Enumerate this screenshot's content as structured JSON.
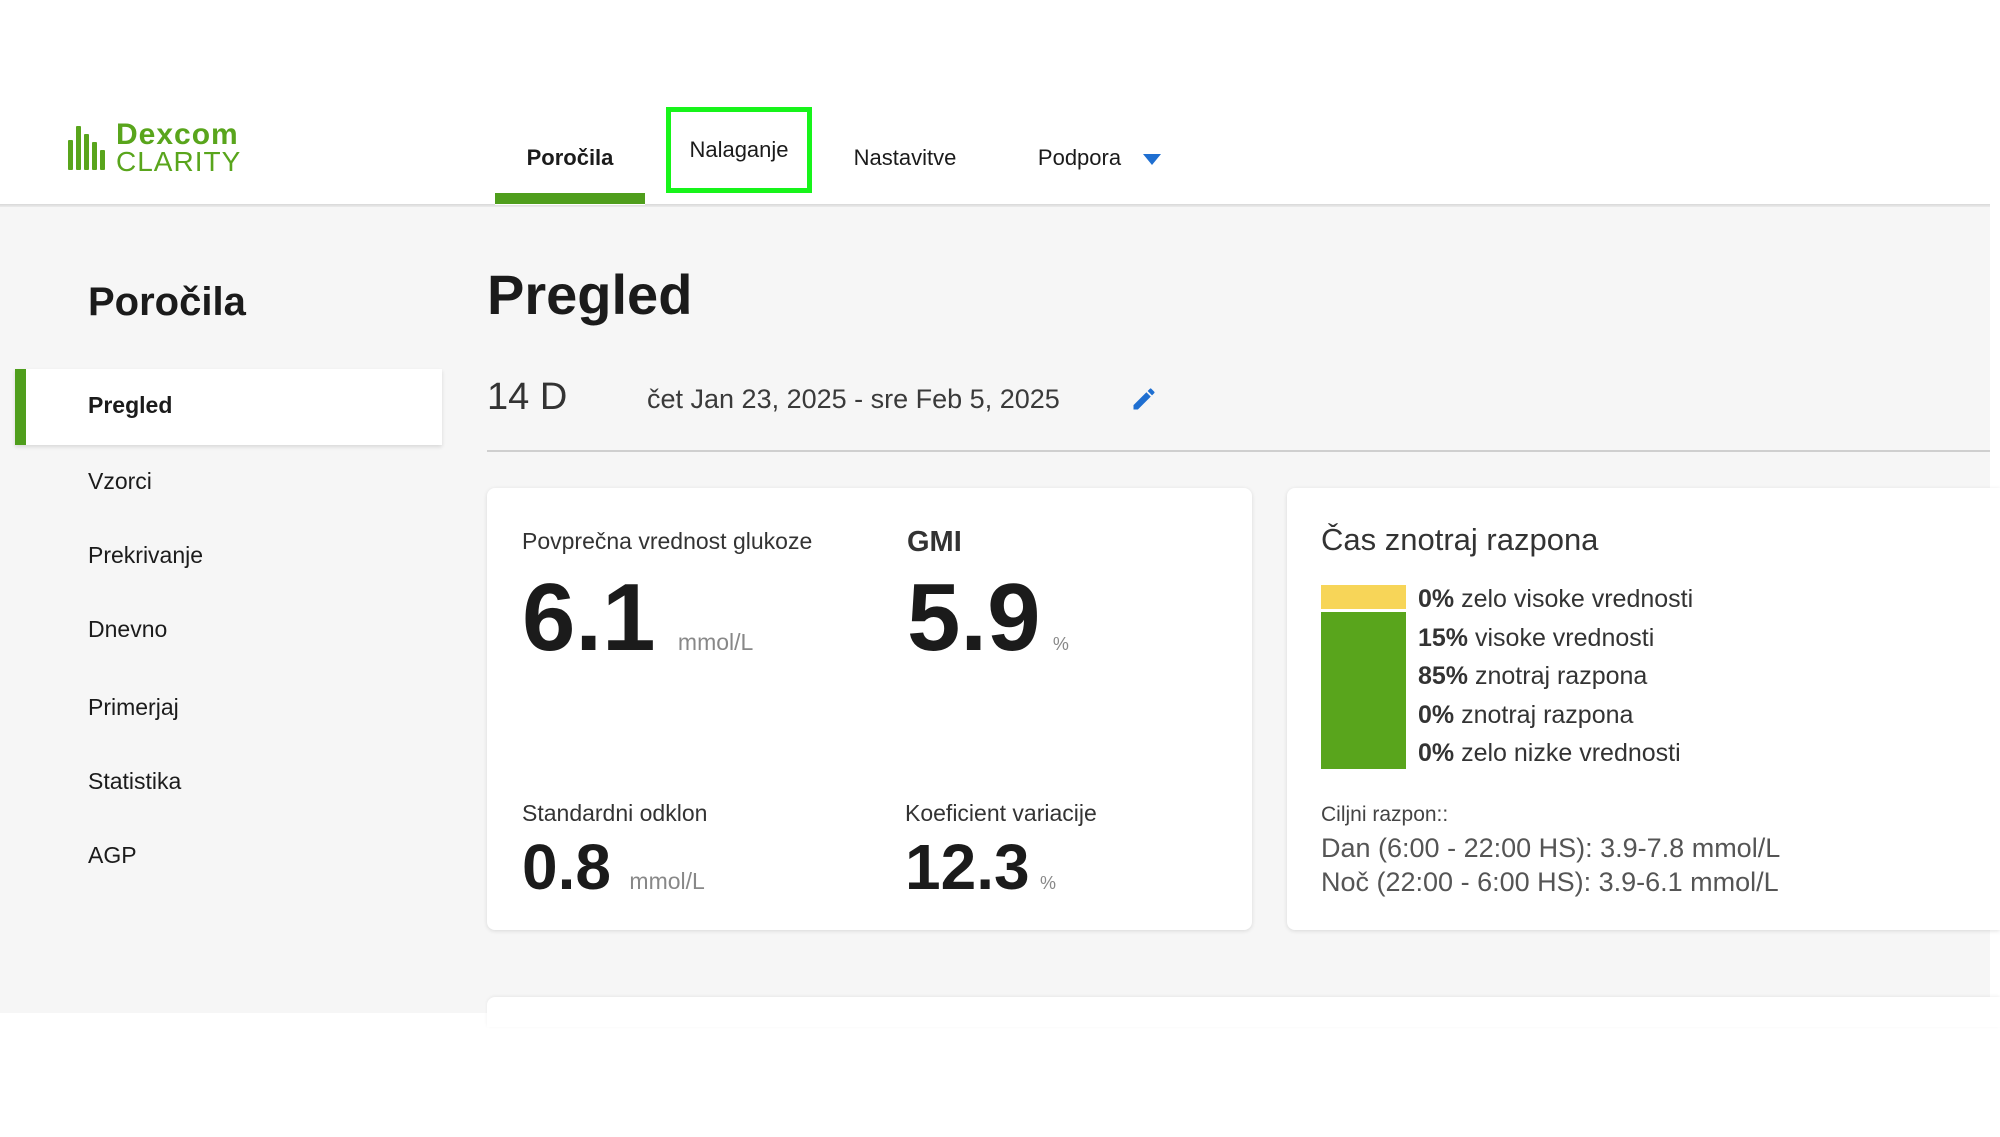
{
  "brand": {
    "name_top": "Dexcom",
    "name_bottom": "CLARITY",
    "color": "#59a51c"
  },
  "nav": {
    "tabs": [
      {
        "label": "Poročila",
        "active": true
      },
      {
        "label": "Nalaganje",
        "highlighted": true,
        "highlight_color": "#17f41a"
      },
      {
        "label": "Nastavitve"
      },
      {
        "label": "Podpora",
        "has_dropdown": true
      }
    ]
  },
  "sidebar": {
    "title": "Poročila",
    "items": [
      {
        "label": "Pregled",
        "active": true
      },
      {
        "label": "Vzorci"
      },
      {
        "label": "Prekrivanje"
      },
      {
        "label": "Dnevno"
      },
      {
        "label": "Primerjaj"
      },
      {
        "label": "Statistika"
      },
      {
        "label": "AGP"
      }
    ]
  },
  "main": {
    "title": "Pregled",
    "range_days": "14 D",
    "range_dates": "čet Jan 23, 2025 - sre Feb 5, 2025",
    "edit_icon": "pencil-icon"
  },
  "stats": {
    "avg_label": "Povprečna vrednost glukoze",
    "avg_value": "6.1",
    "avg_unit": "mmol/L",
    "gmi_label": "GMI",
    "gmi_value": "5.9",
    "gmi_unit": "%",
    "sd_label": "Standardni odklon",
    "sd_value": "0.8",
    "sd_unit": "mmol/L",
    "cv_label": "Koeficient variacije",
    "cv_value": "12.3",
    "cv_unit": "%"
  },
  "time_in_range": {
    "title": "Čas znotraj razpona",
    "rows": [
      {
        "pct": "0%",
        "label": "zelo visoke vrednosti"
      },
      {
        "pct": "15%",
        "label": "visoke vrednosti"
      },
      {
        "pct": "85%",
        "label": "znotraj razpona"
      },
      {
        "pct": "0%",
        "label": "znotraj razpona"
      },
      {
        "pct": "0%",
        "label": "zelo nizke vrednosti"
      }
    ],
    "colors": {
      "very_high": "#f7d558",
      "in_range": "#59a51c"
    },
    "target_label": "Ciljni razpon::",
    "target_day": "Dan (6:00 - 22:00 HS): 3.9-7.8 mmol/L",
    "target_night": "Noč (22:00 - 6:00 HS): 3.9-6.1 mmol/L"
  }
}
